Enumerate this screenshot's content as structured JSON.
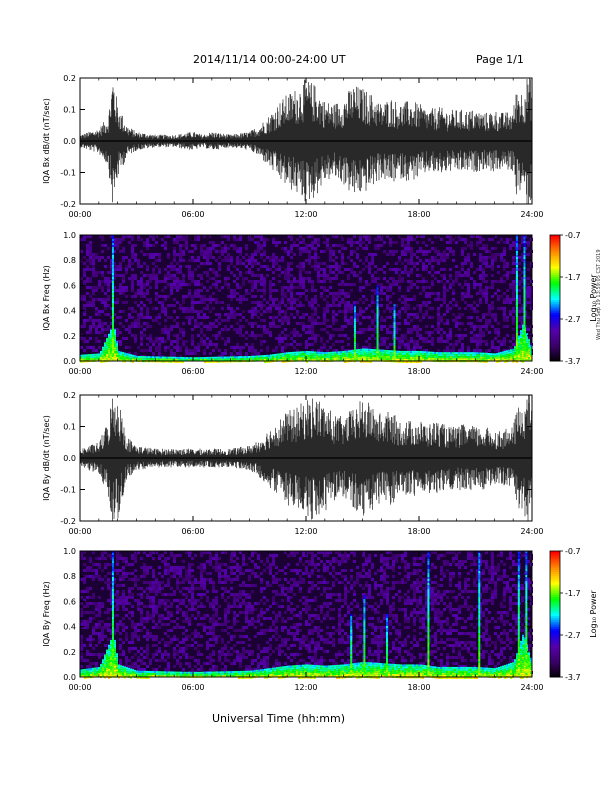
{
  "header": {
    "title": "2014/11/14   00:00-24:00 UT",
    "page": "Page 1/1"
  },
  "footer": {
    "xlabel": "Universal Time (hh:mm)"
  },
  "side_note": "Wed Thu Sep 19 13:59:05 CST 2019",
  "colors": {
    "trace": "#000000",
    "spectrogram_background": "#1a0033",
    "colorbar": [
      "#000000",
      "#3a0066",
      "#5500aa",
      "#0000ff",
      "#00ffff",
      "#00ff00",
      "#ffff00",
      "#ff8800",
      "#ff0000"
    ]
  },
  "chart_data": [
    {
      "type": "line",
      "ylabel": "IQA Bx dB/dt (nT/sec)",
      "ylim": [
        -0.2,
        0.2
      ],
      "yticks": [
        "0.2",
        "0.1",
        "0.0",
        "-0.1",
        "-0.2"
      ],
      "xlim": [
        0,
        24
      ],
      "xticks": [
        "00:00",
        "06:00",
        "12:00",
        "18:00",
        "24:00"
      ],
      "series": [
        {
          "x": [
            0,
            1,
            1.5,
            1.75,
            2,
            2.5,
            3,
            4,
            5,
            6,
            6.5,
            7,
            8,
            9,
            9.5,
            10,
            10.5,
            11,
            11.5,
            12,
            12.5,
            13,
            13.5,
            14,
            14.5,
            15,
            15.5,
            16,
            16.5,
            17,
            17.5,
            18,
            18.5,
            19,
            19.5,
            20,
            20.5,
            21,
            21.5,
            22,
            22.5,
            23,
            23.2,
            23.5,
            23.8,
            24
          ],
          "y": [
            0.02,
            0.04,
            0.08,
            0.22,
            0.12,
            0.05,
            0.03,
            0.02,
            0.02,
            0.03,
            0.02,
            0.03,
            0.02,
            0.03,
            0.05,
            0.08,
            0.12,
            0.15,
            0.17,
            0.2,
            0.18,
            0.13,
            0.12,
            0.14,
            0.18,
            0.17,
            0.15,
            0.12,
            0.14,
            0.12,
            0.13,
            0.12,
            0.1,
            0.11,
            0.1,
            0.1,
            0.1,
            0.1,
            0.09,
            0.1,
            0.09,
            0.1,
            0.18,
            0.16,
            0.22,
            0.2
          ]
        }
      ]
    },
    {
      "type": "heatmap",
      "ylabel": "IQA Bx Freq (Hz)",
      "ylim": [
        0.0,
        1.0
      ],
      "yticks": [
        "1.0",
        "0.8",
        "0.6",
        "0.4",
        "0.2",
        "0.0"
      ],
      "xlim": [
        0,
        24
      ],
      "xticks": [
        "00:00",
        "06:00",
        "12:00",
        "18:00",
        "24:00"
      ],
      "colorbar": {
        "label": "Log₁₀ Power",
        "ticks": [
          "-0.7",
          "-1.7",
          "-2.7",
          "-3.7"
        ],
        "range": [
          -3.7,
          -0.7
        ]
      },
      "low_freq_band": {
        "x": [
          0,
          1,
          1.75,
          2,
          3,
          6,
          9,
          10,
          11,
          12,
          13,
          14,
          15,
          16,
          17,
          18,
          19,
          20,
          21,
          22,
          23,
          23.5,
          24
        ],
        "top_hz": [
          0.05,
          0.06,
          0.3,
          0.08,
          0.04,
          0.03,
          0.04,
          0.05,
          0.07,
          0.08,
          0.07,
          0.08,
          0.1,
          0.09,
          0.08,
          0.08,
          0.07,
          0.07,
          0.07,
          0.06,
          0.1,
          0.3,
          0.08
        ]
      },
      "vertical_streaks": [
        {
          "x": 1.75,
          "top_hz": 1.0
        },
        {
          "x": 14.6,
          "top_hz": 0.45
        },
        {
          "x": 15.8,
          "top_hz": 0.6
        },
        {
          "x": 16.7,
          "top_hz": 0.45
        },
        {
          "x": 23.2,
          "top_hz": 1.0
        },
        {
          "x": 23.6,
          "top_hz": 1.0
        }
      ]
    },
    {
      "type": "line",
      "ylabel": "IQA By dB/dt (nT/sec)",
      "ylim": [
        -0.2,
        0.2
      ],
      "yticks": [
        "0.2",
        "0.1",
        "0.0",
        "-0.1",
        "-0.2"
      ],
      "xlim": [
        0,
        24
      ],
      "xticks": [
        "00:00",
        "06:00",
        "12:00",
        "18:00",
        "24:00"
      ],
      "series": [
        {
          "x": [
            0,
            1,
            1.5,
            1.75,
            2,
            2.5,
            3,
            4,
            5,
            6,
            6.5,
            7,
            8,
            9,
            9.5,
            10,
            10.5,
            11,
            11.5,
            12,
            12.5,
            13,
            13.5,
            14,
            14.5,
            15,
            15.5,
            16,
            16.5,
            17,
            17.5,
            18,
            18.5,
            19,
            19.5,
            20,
            20.5,
            21,
            21.5,
            22,
            22.5,
            23,
            23.2,
            23.5,
            23.8,
            24
          ],
          "y": [
            0.03,
            0.05,
            0.12,
            0.22,
            0.2,
            0.07,
            0.04,
            0.03,
            0.03,
            0.03,
            0.03,
            0.03,
            0.03,
            0.04,
            0.06,
            0.09,
            0.12,
            0.15,
            0.16,
            0.19,
            0.2,
            0.17,
            0.14,
            0.13,
            0.16,
            0.19,
            0.17,
            0.14,
            0.15,
            0.12,
            0.12,
            0.12,
            0.11,
            0.12,
            0.1,
            0.1,
            0.11,
            0.1,
            0.1,
            0.09,
            0.09,
            0.1,
            0.16,
            0.18,
            0.22,
            0.2
          ]
        }
      ]
    },
    {
      "type": "heatmap",
      "ylabel": "IQA By Freq (Hz)",
      "ylim": [
        0.0,
        1.0
      ],
      "yticks": [
        "1.0",
        "0.8",
        "0.6",
        "0.4",
        "0.2",
        "0.0"
      ],
      "xlim": [
        0,
        24
      ],
      "xticks": [
        "00:00",
        "06:00",
        "12:00",
        "18:00",
        "24:00"
      ],
      "colorbar": {
        "label": "Log₁₀ Power",
        "ticks": [
          "-0.7",
          "-1.7",
          "-2.7",
          "-3.7"
        ],
        "range": [
          -3.7,
          -0.7
        ]
      },
      "low_freq_band": {
        "x": [
          0,
          1,
          1.75,
          2,
          3,
          6,
          9,
          10,
          11,
          12,
          13,
          14,
          15,
          16,
          17,
          18,
          19,
          20,
          21,
          22,
          23,
          23.5,
          24
        ],
        "top_hz": [
          0.06,
          0.08,
          0.35,
          0.1,
          0.05,
          0.04,
          0.05,
          0.07,
          0.09,
          0.1,
          0.09,
          0.1,
          0.12,
          0.11,
          0.1,
          0.1,
          0.08,
          0.08,
          0.08,
          0.07,
          0.12,
          0.35,
          0.1
        ]
      },
      "vertical_streaks": [
        {
          "x": 1.75,
          "top_hz": 1.0
        },
        {
          "x": 14.4,
          "top_hz": 0.5
        },
        {
          "x": 15.1,
          "top_hz": 0.65
        },
        {
          "x": 16.3,
          "top_hz": 0.5
        },
        {
          "x": 18.5,
          "top_hz": 1.0
        },
        {
          "x": 21.2,
          "top_hz": 1.0
        },
        {
          "x": 23.3,
          "top_hz": 1.0
        },
        {
          "x": 23.7,
          "top_hz": 1.0
        }
      ]
    }
  ]
}
